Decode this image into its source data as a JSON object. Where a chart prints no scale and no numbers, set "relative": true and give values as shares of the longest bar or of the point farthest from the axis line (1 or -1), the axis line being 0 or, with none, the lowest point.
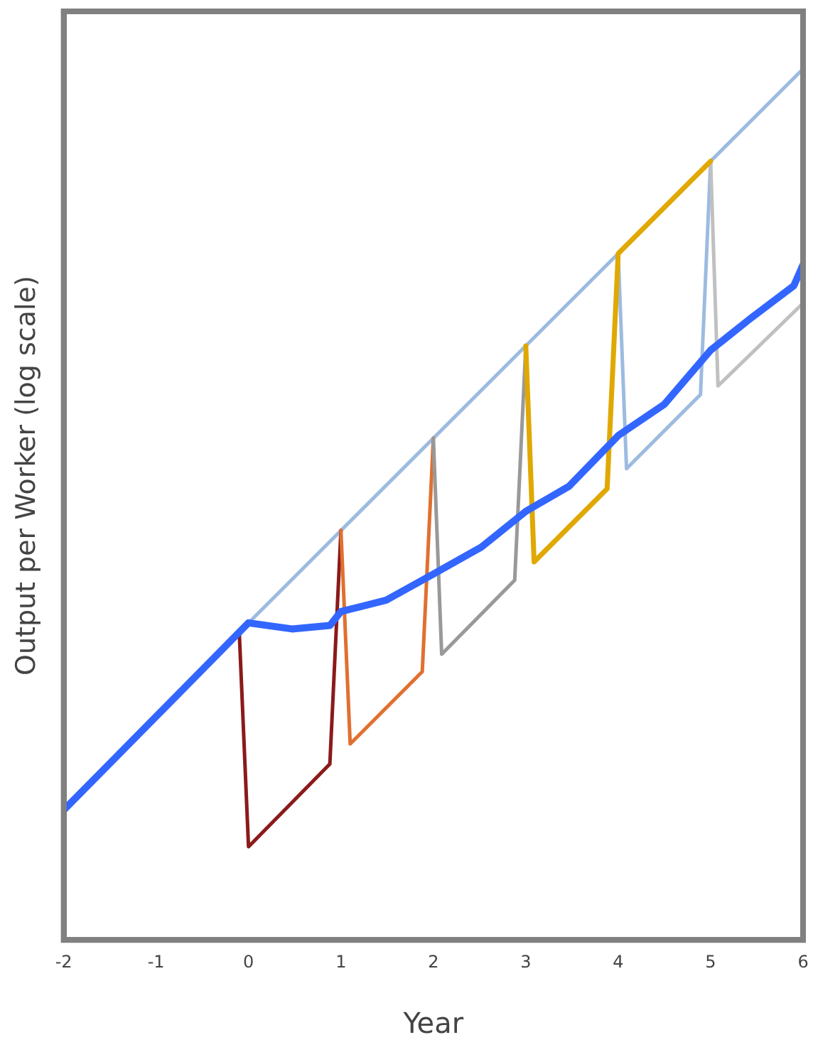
{
  "chart_data": {
    "type": "line",
    "xlabel": "Year",
    "ylabel": "Output per Worker (log scale)",
    "relative": true,
    "xlim": [
      -2,
      6
    ],
    "xticks": [
      -2,
      -1,
      0,
      1,
      2,
      3,
      4,
      5,
      6
    ],
    "series": [
      {
        "color": "#9dbbe0",
        "x": [
          -2,
          6
        ],
        "values": [
          0.152,
          1
        ]
      },
      {
        "color": "#8b1a1a",
        "x": [
          -0.1,
          0,
          0.88,
          1
        ],
        "values": [
          0.353,
          0.107,
          0.202,
          0.47
        ]
      },
      {
        "color": "#e07030",
        "x": [
          1,
          1.1,
          1.88,
          2
        ],
        "values": [
          0.47,
          0.225,
          0.308,
          0.576
        ]
      },
      {
        "color": "#999999",
        "x": [
          2,
          2.09,
          2.88,
          3
        ],
        "values": [
          0.576,
          0.328,
          0.413,
          0.682
        ]
      },
      {
        "color": "#e0a800",
        "x": [
          3,
          3.09,
          3.88,
          4,
          5
        ],
        "values": [
          0.682,
          0.434,
          0.518,
          0.788,
          0.894
        ]
      },
      {
        "color": "#9dbbe0",
        "x": [
          4,
          4.09,
          4.89,
          5
        ],
        "values": [
          0.788,
          0.541,
          0.626,
          0.894
        ]
      },
      {
        "color": "#c0c0c0",
        "x": [
          5,
          5.08,
          6
        ],
        "values": [
          0.894,
          0.636,
          0.731
        ]
      },
      {
        "color": "#3366ff",
        "x": [
          -2,
          0,
          0.47,
          0.88,
          1,
          1.49,
          2,
          2.52,
          3,
          3.47,
          4,
          4.5,
          5,
          5.45,
          5.9,
          6
        ],
        "values": [
          0.149,
          0.364,
          0.357,
          0.361,
          0.377,
          0.39,
          0.42,
          0.451,
          0.492,
          0.521,
          0.579,
          0.615,
          0.677,
          0.715,
          0.751,
          0.775
        ]
      }
    ]
  }
}
